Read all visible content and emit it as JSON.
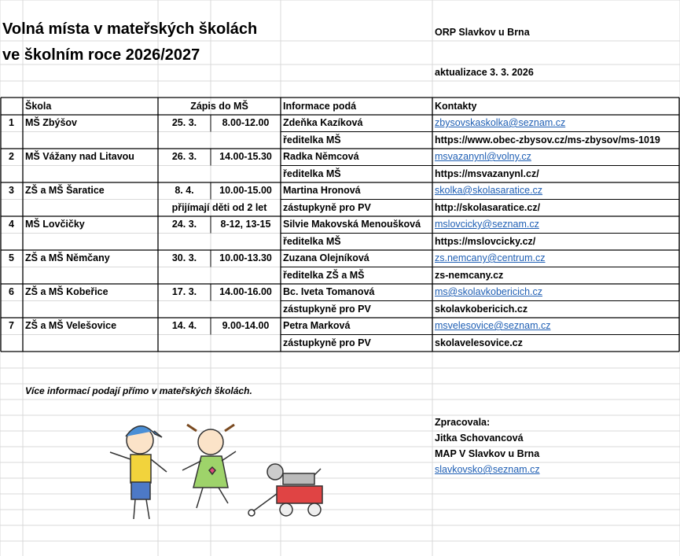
{
  "header": {
    "title_lines": [
      "Volná místa v mateřských školách",
      "ve školním roce 2026/2027"
    ],
    "org": "ORP Slavkov u Brna",
    "update": "aktualizace 3. 3. 2026"
  },
  "table": {
    "columns": [
      "Škola",
      "Zápis do MŠ",
      "Informace podá",
      "Kontakty"
    ],
    "rows": [
      {
        "number": "1",
        "school": "MŠ Zbýšov",
        "date": "25. 3.",
        "time": "8.00-12.00",
        "contact": "Zdeňka Kazíková",
        "email": "zbysovskaskolka@seznam.cz",
        "role": "ředitelka MŠ",
        "web": "https://www.obec-zbysov.cz/ms-zbysov/ms-1019"
      },
      {
        "number": "2",
        "school": "MŠ Vážany nad Litavou",
        "date": "26. 3.",
        "time": "14.00-15.30",
        "contact": "Radka Němcová",
        "email": "msvazanynl@volny.cz",
        "role": "ředitelka MŠ",
        "web": "https://msvazanynl.cz/"
      },
      {
        "number": "3",
        "school": "ZŠ a MŠ Šaratice",
        "date": "8. 4.",
        "time": "10.00-15.00",
        "contact": "Martina Hronová",
        "email": "skolka@skolasaratice.cz",
        "role": "zástupkyně pro PV",
        "web": "http://skolasaratice.cz/",
        "note": "přijímají děti od 2 let"
      },
      {
        "number": "4",
        "school": "MŠ Lovčičky",
        "date": "24. 3.",
        "time": "8-12, 13-15",
        "contact": "Silvie Makovská Menoušková",
        "email": "mslovcicky@seznam.cz",
        "role": "ředitelka MŠ",
        "web": "https://mslovcicky.cz/"
      },
      {
        "number": "5",
        "school": "ZŠ a MŠ Němčany",
        "date": "30. 3.",
        "time": "10.00-13.30",
        "contact": "Zuzana Olejníková",
        "email": "zs.nemcany@centrum.cz",
        "role": "ředitelka ZŠ a MŠ",
        "web": "zs-nemcany.cz"
      },
      {
        "number": "6",
        "school": "ZŠ a MŠ Kobeřice",
        "date": "17. 3.",
        "time": "14.00-16.00",
        "contact": "Bc. Iveta Tomanová",
        "email": "ms@skolavkobericich.cz",
        "role": "zástupkyně pro PV",
        "web": "skolavkobericich.cz"
      },
      {
        "number": "7",
        "school": "ZŠ a MŠ Velešovice",
        "date": "14. 4.",
        "time": "9.00-14.00",
        "contact": "Petra Marková",
        "email": "msvelesovice@seznam.cz",
        "role": "zástupkyně pro PV",
        "web": "skolavelesovice.cz"
      }
    ]
  },
  "footer": {
    "note": "Více informací podají přímo v mateřských školách.",
    "author_lines": [
      "Zpracovala:",
      "Jitka Schovancová",
      "MAP V Slavkov u Brna"
    ],
    "email": "slavkovsko@seznam.cz"
  }
}
